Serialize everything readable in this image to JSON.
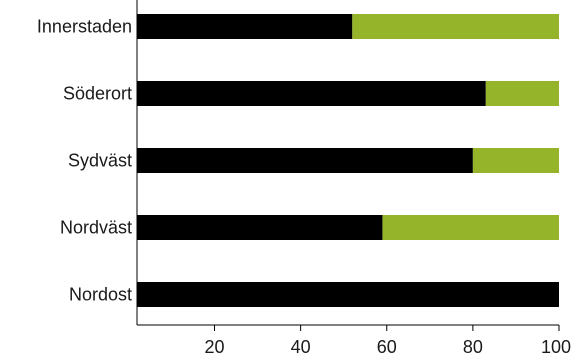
{
  "chart_data": {
    "type": "bar",
    "orientation": "horizontal",
    "stacked": true,
    "categories": [
      "Innerstaden",
      "Söderort",
      "Sydväst",
      "Nordväst",
      "Nordost"
    ],
    "series": [
      {
        "values": [
          50,
          81,
          78,
          57,
          100
        ],
        "color": "#000000"
      },
      {
        "values": [
          50,
          19,
          22,
          43,
          0
        ],
        "color": "#95b42a"
      }
    ],
    "xlim": [
      2,
      100
    ],
    "xticks": [
      20,
      40,
      60,
      80,
      100
    ],
    "xticks_labels": [
      "20",
      "40",
      "60",
      "80",
      "100"
    ],
    "grid": false,
    "legend": "none"
  }
}
